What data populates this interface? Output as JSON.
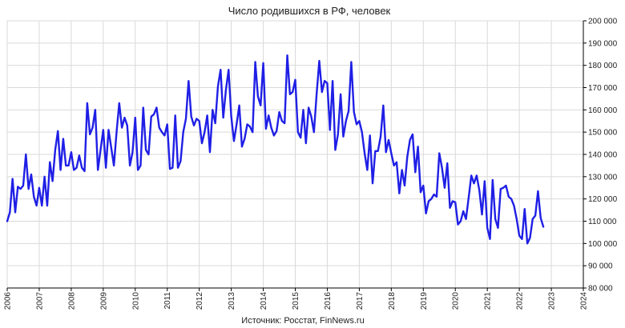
{
  "chart_data": {
    "type": "line",
    "title": "Число родившихся в РФ, человек",
    "source": "Источник: Росстат, FinNews.ru",
    "xlabel": "",
    "ylabel": "",
    "xlim": [
      2006,
      2024
    ],
    "ylim": [
      80000,
      200000
    ],
    "y_ticks": [
      80000,
      90000,
      100000,
      110000,
      120000,
      130000,
      140000,
      150000,
      160000,
      170000,
      180000,
      190000,
      200000
    ],
    "y_tick_labels": [
      "80 000",
      "90 000",
      "100 000",
      "110 000",
      "120 000",
      "130 000",
      "140 000",
      "150 000",
      "160 000",
      "170 000",
      "180 000",
      "190 000",
      "200 000"
    ],
    "x_tick_labels": [
      "2006",
      "2007",
      "2008",
      "2009",
      "2010",
      "2011",
      "2012",
      "2013",
      "2014",
      "2015",
      "2016",
      "2017",
      "2018",
      "2019",
      "2020",
      "2021",
      "2022",
      "2023",
      "2024"
    ],
    "y_axis_position": "right",
    "grid": true,
    "legend": "none",
    "colors": {
      "line": "#1f1fe6",
      "grid": "#d9d9d9",
      "axis": "#000000"
    },
    "series": [
      {
        "name": "",
        "start": "2006-01",
        "frequency": "monthly",
        "values": [
          110000,
          114000,
          129000,
          114000,
          125500,
          124500,
          126000,
          140000,
          124500,
          131000,
          121000,
          117000,
          125000,
          117000,
          130000,
          117000,
          136500,
          128000,
          142000,
          150500,
          133000,
          147000,
          135000,
          135000,
          141000,
          133000,
          134000,
          139500,
          134000,
          132500,
          163000,
          149000,
          152000,
          160000,
          133000,
          142000,
          151000,
          134000,
          151000,
          143000,
          135000,
          150000,
          163000,
          152000,
          156500,
          153000,
          135000,
          141000,
          156500,
          133000,
          135000,
          161000,
          142000,
          140000,
          157000,
          158000,
          161000,
          152000,
          150000,
          148500,
          153500,
          133500,
          134000,
          157500,
          134000,
          137000,
          150000,
          156000,
          173000,
          157000,
          153000,
          156000,
          155000,
          145000,
          150000,
          157500,
          141000,
          160000,
          154000,
          170500,
          178000,
          156500,
          169000,
          178000,
          157000,
          146000,
          153500,
          162000,
          143500,
          147000,
          153500,
          152500,
          150000,
          181500,
          166000,
          162000,
          181000,
          151500,
          157500,
          152000,
          148500,
          150500,
          159000,
          155000,
          154000,
          184500,
          167000,
          168000,
          173500,
          150000,
          147500,
          160000,
          145000,
          161000,
          157000,
          150000,
          167000,
          182000,
          168000,
          173000,
          172000,
          151000,
          173000,
          142000,
          149000,
          167000,
          148000,
          155000,
          159500,
          181500,
          159000,
          153500,
          155000,
          150000,
          140500,
          133000,
          148500,
          127000,
          141500,
          141500,
          148000,
          162000,
          141000,
          146500,
          140500,
          135000,
          136500,
          122500,
          133000,
          126000,
          139000,
          146500,
          149000,
          132000,
          143500,
          123000,
          126000,
          113500,
          119000,
          120000,
          122000,
          121000,
          140500,
          134000,
          125000,
          136000,
          116000,
          119000,
          118500,
          108500,
          110000,
          114500,
          111000,
          120500,
          130500,
          127000,
          130500,
          124000,
          113000,
          128000,
          107000,
          102000,
          128500,
          111000,
          107000,
          124500,
          125000,
          126000,
          121000,
          120000,
          117000,
          111000,
          103500,
          102000,
          115500,
          100000,
          102500,
          111000,
          112500,
          123500,
          111500,
          107500
        ]
      }
    ]
  }
}
